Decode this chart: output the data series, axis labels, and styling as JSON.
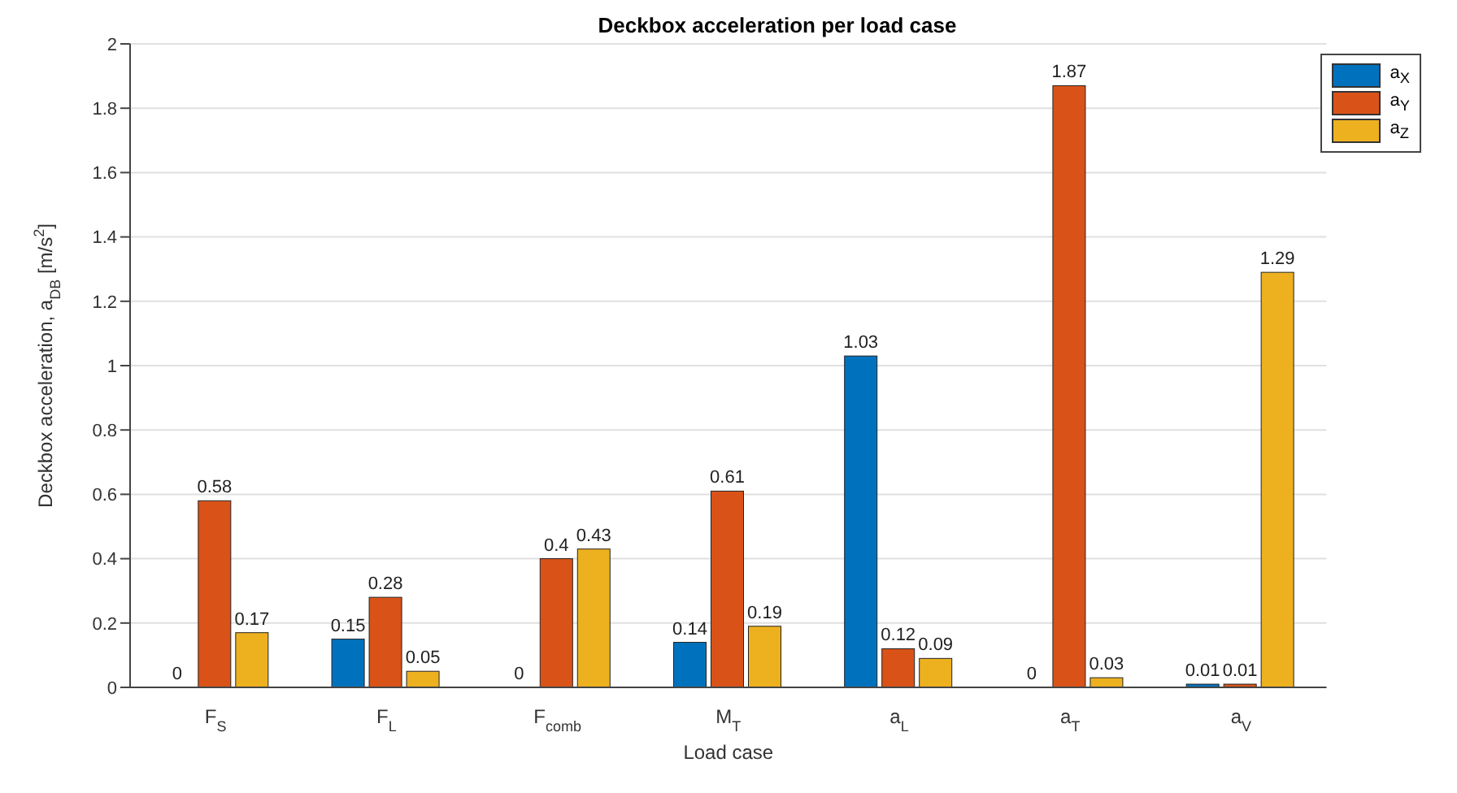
{
  "chart_data": {
    "type": "bar",
    "title": "Deckbox acceleration per load case",
    "xlabel": "Load case",
    "ylabel": "Deckbox acceleration, a$_{DB}$ [m/s$^{2}$]",
    "categories": [
      "F$_{S}$",
      "F$_{L}$",
      "F$_{comb}$",
      "M$_{T}$",
      "a$_{L}$",
      "a$_{T}$",
      "a$_{V}$"
    ],
    "series": [
      {
        "name": "a$_{X}$",
        "color": "#0072bd",
        "values": [
          0,
          0.15,
          0,
          0.14,
          1.03,
          0,
          0.01
        ]
      },
      {
        "name": "a$_{Y}$",
        "color": "#d95319",
        "values": [
          0.58,
          0.28,
          0.4,
          0.61,
          0.12,
          1.87,
          0.01
        ]
      },
      {
        "name": "a$_{Z}$",
        "color": "#edb120",
        "values": [
          0.17,
          0.05,
          0.43,
          0.19,
          0.09,
          0.03,
          1.29
        ]
      }
    ],
    "ylim": [
      0,
      2
    ],
    "yticks": [
      0,
      0.2,
      0.4,
      0.6,
      0.8,
      1,
      1.2,
      1.4,
      1.6,
      1.8,
      2
    ],
    "grid": "y",
    "legend": "top right",
    "data_labels": true
  }
}
